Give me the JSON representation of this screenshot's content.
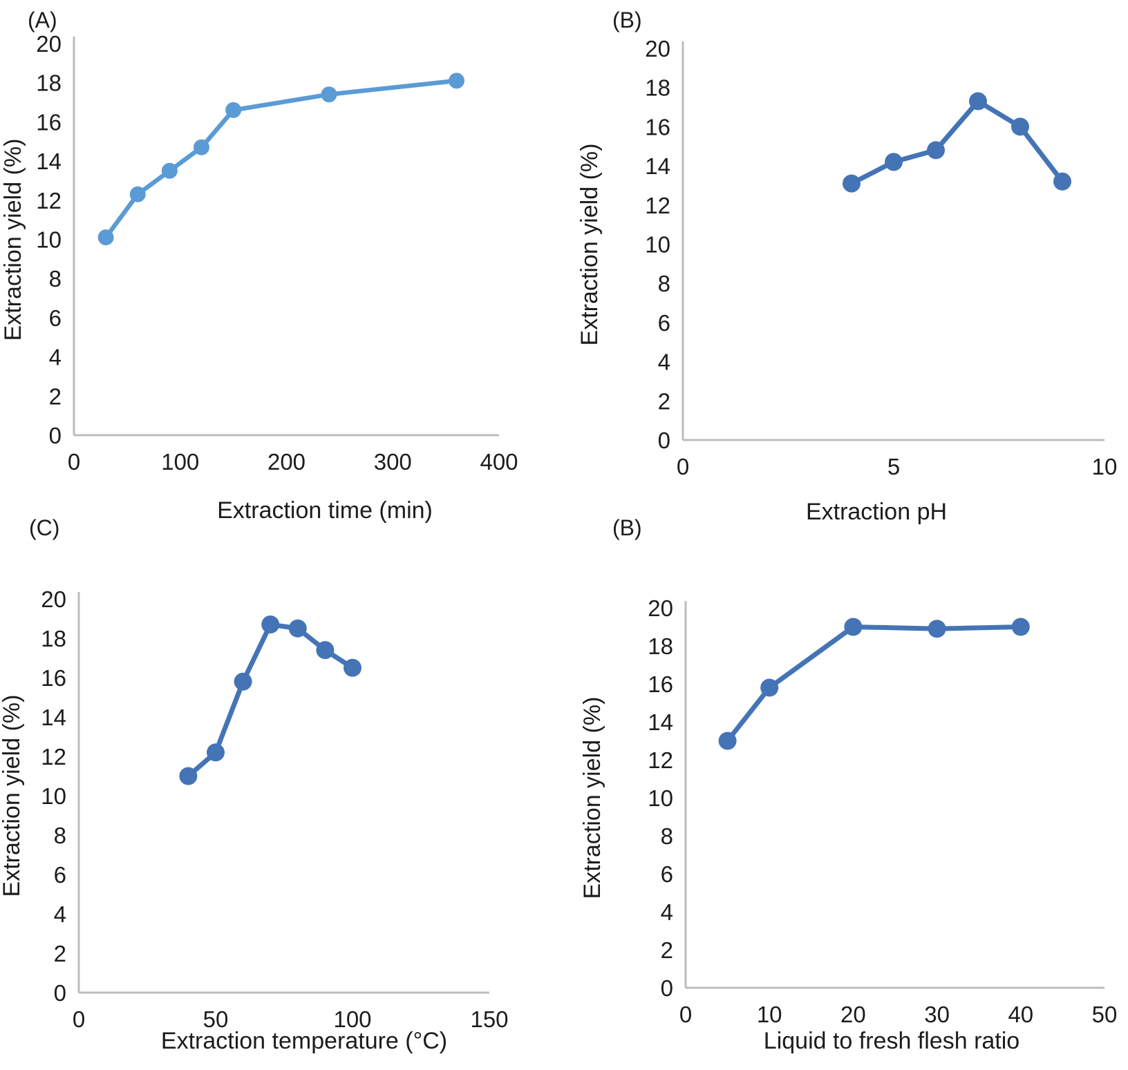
{
  "figure": {
    "background": "#ffffff",
    "text_color": "#1c1c1c",
    "axis_color": "#bcbcbc"
  },
  "chart_data": [
    {
      "panel_label": "(A)",
      "type": "line",
      "x": [
        30,
        60,
        90,
        120,
        150,
        240,
        360
      ],
      "y": [
        10.1,
        12.3,
        13.5,
        14.7,
        16.6,
        17.4,
        18.1
      ],
      "xlabel": "Extraction time (min)",
      "ylabel": "Extraction yield (%)",
      "xlim": [
        0,
        400
      ],
      "xticks": [
        0,
        100,
        200,
        300,
        400
      ],
      "ylim": [
        0,
        20
      ],
      "yticks": [
        0,
        2,
        4,
        6,
        8,
        10,
        12,
        14,
        16,
        18,
        20
      ],
      "grid": false,
      "legend": "none",
      "color": "#5b9bd5",
      "line_width": 6.5,
      "marker_radius": 11.5
    },
    {
      "panel_label": "(B)",
      "type": "line",
      "x": [
        4,
        5,
        6,
        7,
        8,
        9
      ],
      "y": [
        13.1,
        14.2,
        14.8,
        17.3,
        16.0,
        13.2
      ],
      "xlabel": "Extraction pH",
      "ylabel": "Extraction yield (%)",
      "xlim": [
        0,
        10
      ],
      "xticks": [
        0,
        5,
        10
      ],
      "ylim": [
        0,
        20
      ],
      "yticks": [
        0,
        2,
        4,
        6,
        8,
        10,
        12,
        14,
        16,
        18,
        20
      ],
      "grid": false,
      "legend": "none",
      "color": "#4474b5",
      "line_width": 7,
      "marker_radius": 13
    },
    {
      "panel_label": "(C)",
      "type": "line",
      "x": [
        40,
        50,
        60,
        70,
        80,
        90,
        100
      ],
      "y": [
        11.0,
        12.2,
        15.8,
        18.7,
        18.5,
        17.4,
        16.5
      ],
      "xlabel": "Extraction temperature (°C)",
      "ylabel": "Extraction yield (%)",
      "xlim": [
        0,
        150
      ],
      "xticks": [
        0,
        50,
        100,
        150
      ],
      "ylim": [
        0,
        20
      ],
      "yticks": [
        0,
        2,
        4,
        6,
        8,
        10,
        12,
        14,
        16,
        18,
        20
      ],
      "grid": false,
      "legend": "none",
      "color": "#4474b5",
      "line_width": 7,
      "marker_radius": 13
    },
    {
      "panel_label": "(B)",
      "type": "line",
      "x": [
        5,
        10,
        20,
        30,
        40
      ],
      "y": [
        13.0,
        15.8,
        19.0,
        18.9,
        19.0
      ],
      "xlabel": "Liquid to fresh flesh ratio",
      "ylabel": "Extraction yield (%)",
      "xlim": [
        0,
        50
      ],
      "xticks": [
        0,
        10,
        20,
        30,
        40,
        50
      ],
      "ylim": [
        0,
        20
      ],
      "yticks": [
        0,
        2,
        4,
        6,
        8,
        10,
        12,
        14,
        16,
        18,
        20
      ],
      "grid": false,
      "legend": "none",
      "color": "#4474b5",
      "line_width": 7,
      "marker_radius": 13
    }
  ]
}
